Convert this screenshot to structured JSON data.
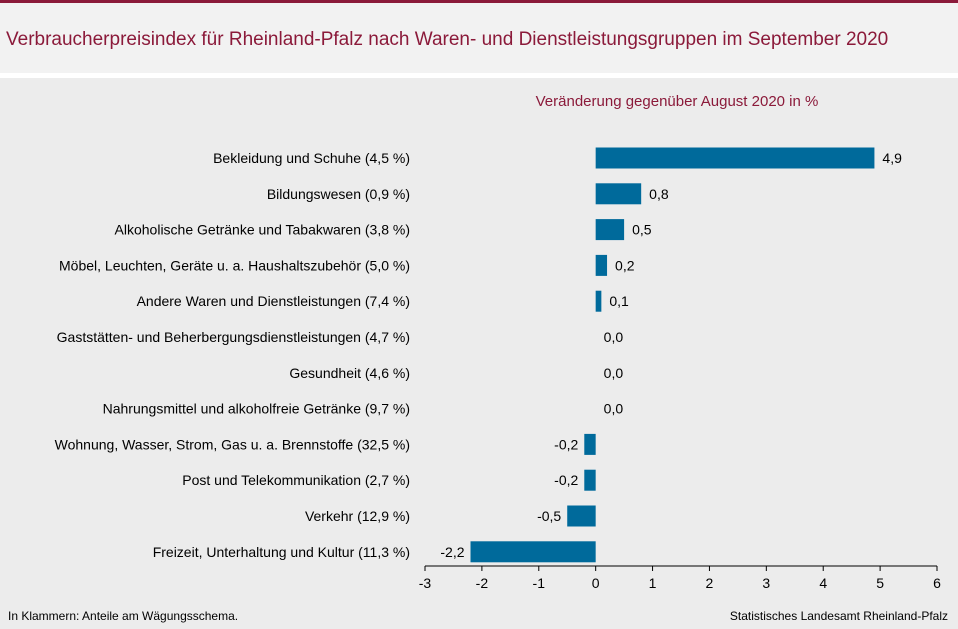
{
  "header": {
    "title": "Verbraucherpreisindex für Rheinland-Pfalz nach Waren- und Dienstleistungsgruppen im September 2020"
  },
  "footer": {
    "note": "In Klammern: Anteile am Wägungsschema.",
    "source": "Statistisches Landesamt Rheinland-Pfalz"
  },
  "colors": {
    "accent": "#8b1a3a",
    "bar": "#006a9b"
  },
  "chart_data": {
    "type": "bar",
    "orientation": "horizontal",
    "subtitle": "Veränderung gegenüber August 2020 in %",
    "categories": [
      "Bekleidung und Schuhe (4,5 %)",
      "Bildungswesen (0,9 %)",
      "Alkoholische Getränke und Tabakwaren (3,8 %)",
      "Möbel, Leuchten, Geräte u. a. Haushaltszubehör (5,0 %)",
      "Andere Waren und Dienstleistungen (7,4 %)",
      "Gaststätten- und Beherbergungsdienstleistungen (4,7 %)",
      "Gesundheit (4,6 %)",
      "Nahrungsmittel und alkoholfreie Getränke (9,7 %)",
      "Wohnung, Wasser, Strom, Gas u. a. Brennstoffe (32,5 %)",
      "Post und Telekommunikation (2,7 %)",
      "Verkehr (12,9 %)",
      "Freizeit, Unterhaltung und Kultur (11,3 %)"
    ],
    "values": [
      4.9,
      0.8,
      0.5,
      0.2,
      0.1,
      0.0,
      0.0,
      0.0,
      -0.2,
      -0.2,
      -0.5,
      -2.2
    ],
    "value_labels": [
      "4,9",
      "0,8",
      "0,5",
      "0,2",
      "0,1",
      "0,0",
      "0,0",
      "0,0",
      "-0,2",
      "-0,2",
      "-0,5",
      "-2,2"
    ],
    "xlim": [
      -3,
      6
    ],
    "xticks": [
      -3,
      -2,
      -1,
      0,
      1,
      2,
      3,
      4,
      5,
      6
    ],
    "xtick_labels": [
      "-3",
      "-2",
      "-1",
      "0",
      "1",
      "2",
      "3",
      "4",
      "5",
      "6"
    ],
    "grid": false,
    "legend": "none"
  }
}
